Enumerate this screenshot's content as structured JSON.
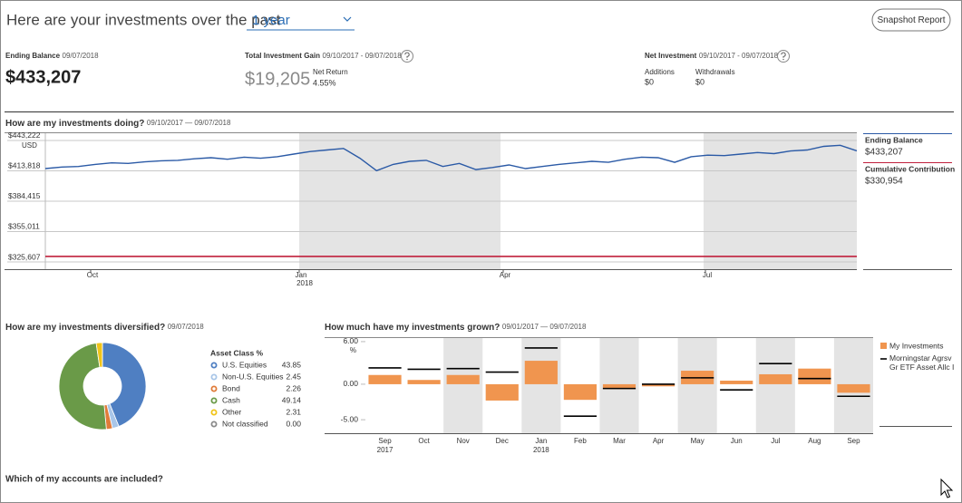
{
  "header": {
    "title": "Here are your investments over the past",
    "period": "1 year",
    "button": "Snapshot Report"
  },
  "summary": {
    "ending_balance": {
      "label": "Ending Balance",
      "date": "09/07/2018",
      "value": "$433,207"
    },
    "total_gain": {
      "label": "Total Investment Gain",
      "dates": "09/10/2017 - 09/07/2018",
      "value": "$19,205",
      "net_return_label": "Net Return",
      "net_return": "4.55%"
    },
    "net_investment": {
      "label": "Net Investment",
      "dates": "09/10/2017 - 09/07/2018",
      "additions_label": "Additions",
      "additions": "$0",
      "withdrawals_label": "Withdrawals",
      "withdrawals": "$0"
    }
  },
  "chart_data": [
    {
      "type": "line",
      "title": "How are my investments doing?",
      "subtitle": "09/10/2017 — 09/07/2018",
      "unit": "USD",
      "ylim": [
        318600,
        450200
      ],
      "yticks": [
        {
          "value": 443222,
          "label": "$443,222"
        },
        {
          "value": 413818,
          "label": "$413,818"
        },
        {
          "value": 384415,
          "label": "$384,415"
        },
        {
          "value": 355011,
          "label": "$355,011"
        },
        {
          "value": 325607,
          "label": "$325,607"
        }
      ],
      "xtick_labels": [
        "Oct",
        "Jan",
        "Apr",
        "Jul"
      ],
      "xtick_year": "2018",
      "grid": true,
      "series": [
        {
          "name": "Ending Balance",
          "color": "#2b5aa6",
          "value_label": "$433,207",
          "values": [
            416000,
            417500,
            418000,
            420000,
            421500,
            421000,
            422500,
            423500,
            424000,
            425500,
            426500,
            425000,
            427000,
            426000,
            427500,
            430000,
            432500,
            434000,
            435500,
            426000,
            414000,
            420000,
            423000,
            424000,
            418000,
            421000,
            415000,
            417000,
            419500,
            416000,
            418000,
            420000,
            421500,
            423000,
            422000,
            425000,
            427000,
            426500,
            422000,
            427500,
            429000,
            428500,
            430000,
            431500,
            430500,
            433000,
            434000,
            437500,
            438500,
            433207
          ]
        },
        {
          "name": "Cumulative Contribution",
          "color": "#c0203c",
          "value_label": "$330,954",
          "values": [
            330954,
            330954,
            330954,
            330954,
            330954,
            330954,
            330954,
            330954,
            330954,
            330954,
            330954,
            330954,
            330954,
            330954,
            330954,
            330954,
            330954,
            330954,
            330954,
            330954,
            330954,
            330954,
            330954,
            330954,
            330954,
            330954,
            330954,
            330954,
            330954,
            330954,
            330954,
            330954,
            330954,
            330954,
            330954,
            330954,
            330954,
            330954,
            330954,
            330954,
            330954,
            330954,
            330954,
            330954,
            330954,
            330954,
            330954,
            330954,
            330954,
            330954
          ]
        }
      ]
    },
    {
      "type": "pie",
      "title": "How are my investments diversified?",
      "subtitle": "09/07/2018",
      "legend_title": "Asset Class %",
      "categories": [
        "U.S. Equities",
        "Non-U.S. Equities",
        "Bond",
        "Cash",
        "Other",
        "Not classified"
      ],
      "values": [
        43.85,
        2.45,
        2.26,
        49.14,
        2.31,
        0
      ],
      "value_labels": [
        "43.85",
        "2.45",
        "2.26",
        "49.14",
        "2.31",
        "0.00"
      ],
      "colors": [
        "#4f7fc2",
        "#a9c6e8",
        "#e07b39",
        "#6a9a48",
        "#f0c419",
        "#8a8a8a"
      ]
    },
    {
      "type": "bar",
      "title": "How much have my investments grown?",
      "subtitle": "09/01/2017 — 09/07/2018",
      "unit": "%",
      "categories": [
        "Sep",
        "Oct",
        "Nov",
        "Dec",
        "Jan",
        "Feb",
        "Mar",
        "Apr",
        "May",
        "Jun",
        "Jul",
        "Aug",
        "Sep"
      ],
      "category_years": [
        "2017",
        null,
        null,
        null,
        "2018",
        null,
        null,
        null,
        null,
        null,
        null,
        null,
        null
      ],
      "ylim": [
        -6.9,
        6.5
      ],
      "yticks": [
        {
          "value": 6,
          "label": "6.00"
        },
        {
          "value": 0,
          "label": "0.00"
        },
        {
          "value": -5,
          "label": "-5.00"
        }
      ],
      "series": [
        {
          "name": "My Investments",
          "color": "#f0954f",
          "style": "bar",
          "values": [
            1.3,
            0.6,
            1.3,
            -2.3,
            3.3,
            -2.2,
            -0.7,
            -0.3,
            1.9,
            0.5,
            1.4,
            2.2,
            -1.2
          ]
        },
        {
          "name": "Morningstar Agrsv Gr ETF Asset Allc I",
          "color": "#000000",
          "style": "marker-line",
          "values": [
            2.3,
            2.1,
            2.2,
            1.7,
            5.1,
            -4.5,
            -0.6,
            0.0,
            0.9,
            -0.8,
            2.9,
            0.8,
            -1.7
          ]
        }
      ]
    }
  ],
  "footer": {
    "accounts": "Which of my accounts are included?"
  }
}
